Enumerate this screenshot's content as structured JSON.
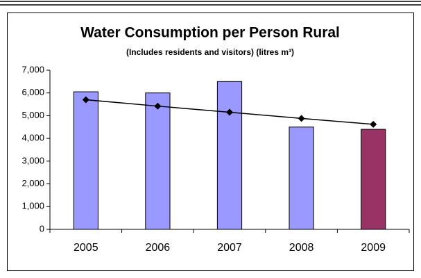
{
  "chart_data": {
    "type": "bar",
    "title": "Water Consumption per Person Rural",
    "subtitle": "(Includes residents and visitors) (litres m³)",
    "categories": [
      "2005",
      "2006",
      "2007",
      "2008",
      "2009"
    ],
    "series": [
      {
        "type": "bar",
        "colors": [
          "#9999ff",
          "#9999ff",
          "#9999ff",
          "#9999ff",
          "#993366"
        ],
        "values": [
          6050,
          6000,
          6500,
          4500,
          4400
        ]
      },
      {
        "type": "line",
        "color": "#000000",
        "values": [
          5700,
          5420,
          5150,
          4880,
          4620
        ]
      }
    ],
    "ylim": [
      0,
      7000
    ],
    "yticks": [
      0,
      {
        "value": 1000,
        "label": "1,000"
      },
      {
        "value": 2000,
        "label": "2,000"
      },
      {
        "value": 3000,
        "label": "3,000"
      },
      {
        "value": 4000,
        "label": "4,000"
      },
      {
        "value": 5000,
        "label": "5,000"
      },
      {
        "value": 6000,
        "label": "6,000"
      },
      {
        "value": 7000,
        "label": "7,000"
      }
    ],
    "grid": false
  }
}
